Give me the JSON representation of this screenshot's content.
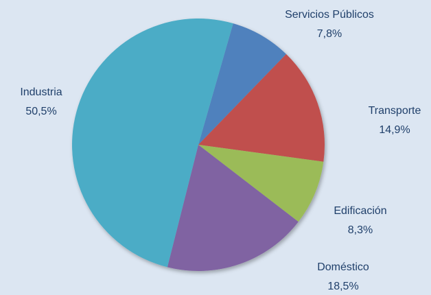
{
  "chart_data": {
    "type": "pie",
    "categories": [
      "Servicios Públicos",
      "Transporte",
      "Edificación",
      "Doméstico",
      "Industria"
    ],
    "values": [
      7.8,
      14.9,
      8.3,
      18.5,
      50.5
    ],
    "value_labels": [
      "7,8%",
      "14,9%",
      "8,3%",
      "18,5%",
      "50,5%"
    ],
    "colors": [
      "#4f81bd",
      "#c0504d",
      "#9bbb59",
      "#8064a2",
      "#4bacc6"
    ]
  }
}
